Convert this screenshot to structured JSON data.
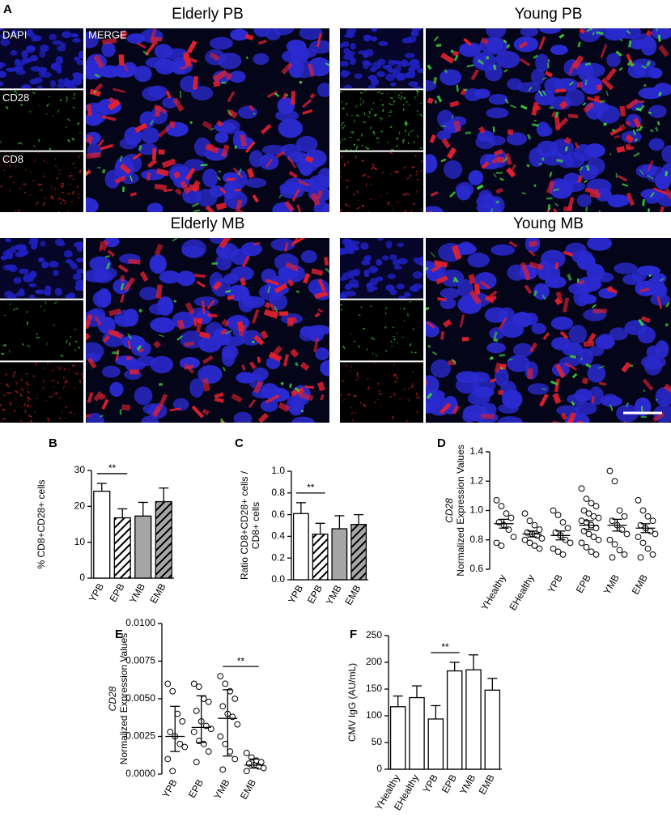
{
  "panel_a": {
    "panel": "A",
    "images": [
      {
        "title": "Elderly PB",
        "labels": {
          "dapi": "DAPI",
          "cd28": "CD28",
          "cd8": "CD8",
          "merge": "MERGE"
        }
      },
      {
        "title": "Young PB"
      },
      {
        "title": "Elderly MB"
      },
      {
        "title": "Young MB"
      }
    ]
  },
  "chart_data": [
    {
      "panel": "B",
      "type": "bar",
      "ylabel": [
        "% CD8+CD28+ cells"
      ],
      "categories": [
        "YPB",
        "EPB",
        "YMB",
        "EMB"
      ],
      "values": [
        24.2,
        16.8,
        17.3,
        21.3
      ],
      "errors": [
        2.2,
        2.5,
        3.8,
        3.8
      ],
      "colors": [
        "#ffffff",
        "#ffffff",
        "#a6a6a6",
        "#a6a6a6"
      ],
      "hatched": [
        false,
        true,
        false,
        true
      ],
      "ylim": [
        0,
        30
      ],
      "yticks": [
        0,
        10,
        20,
        30
      ],
      "annotation": {
        "label": "**",
        "between": [
          "YPB",
          "EPB"
        ]
      }
    },
    {
      "panel": "C",
      "type": "bar",
      "ylabel": [
        "Ratio CD8+CD28+ cells /",
        "CD8+ cells"
      ],
      "categories": [
        "YPB",
        "EPB",
        "YMB",
        "EMB"
      ],
      "values": [
        0.61,
        0.42,
        0.47,
        0.51
      ],
      "errors": [
        0.1,
        0.1,
        0.12,
        0.09
      ],
      "colors": [
        "#ffffff",
        "#ffffff",
        "#a6a6a6",
        "#a6a6a6"
      ],
      "hatched": [
        false,
        true,
        false,
        true
      ],
      "ylim": [
        0,
        1
      ],
      "yticks": [
        {
          "value": 0,
          "label": "0.0"
        },
        0.2,
        0.4,
        0.6,
        0.8,
        {
          "value": 1,
          "label": "1.0"
        }
      ],
      "annotation": {
        "label": "**",
        "between": [
          "YPB",
          "EPB"
        ]
      }
    },
    {
      "panel": "D",
      "type": "dot",
      "ylabel": [
        "CD28",
        "Normalized Expression Values"
      ],
      "ylabel_italic": [
        true,
        false
      ],
      "categories": [
        "YHealthy",
        "EHealthy",
        "YPB",
        "EPB",
        "YMB",
        "EMB"
      ],
      "points": [
        [
          1.07,
          1.03,
          0.98,
          0.95,
          0.92,
          0.9,
          0.87,
          0.82,
          0.78,
          0.76
        ],
        [
          0.98,
          0.93,
          0.9,
          0.87,
          0.85,
          0.84,
          0.83,
          0.81,
          0.8,
          0.78,
          0.76,
          0.74
        ],
        [
          1.0,
          0.97,
          0.92,
          0.88,
          0.85,
          0.83,
          0.8,
          0.78,
          0.74,
          0.72,
          0.7
        ],
        [
          1.15,
          1.08,
          1.05,
          1.03,
          1.0,
          0.98,
          0.96,
          0.95,
          0.93,
          0.92,
          0.9,
          0.88,
          0.86,
          0.84,
          0.82,
          0.8,
          0.78,
          0.75,
          0.72,
          0.7
        ],
        [
          1.27,
          1.2,
          1.0,
          0.96,
          0.93,
          0.9,
          0.87,
          0.84,
          0.8,
          0.77,
          0.73,
          0.7,
          0.68
        ],
        [
          1.07,
          1.0,
          0.96,
          0.93,
          0.9,
          0.88,
          0.86,
          0.84,
          0.82,
          0.78,
          0.74,
          0.7,
          0.68
        ]
      ],
      "values": [
        0.91,
        0.84,
        0.83,
        0.9,
        0.9,
        0.88
      ],
      "errors": [
        0.03,
        0.02,
        0.03,
        0.03,
        0.04,
        0.03
      ],
      "ylim": [
        0.6,
        1.4
      ],
      "yticks": [
        0.6,
        0.8,
        {
          "value": 1,
          "label": "1.0"
        },
        1.2,
        1.4
      ]
    },
    {
      "panel": "E",
      "type": "dot",
      "ylabel": [
        "CD28",
        "Normalized Expression Values"
      ],
      "ylabel_italic": [
        true,
        false
      ],
      "categories": [
        "YPB",
        "EPB",
        "YMB",
        "EMB"
      ],
      "points": [
        [
          0.006,
          0.0055,
          0.004,
          0.0035,
          0.0028,
          0.0025,
          0.002,
          0.0018,
          0.001,
          0.0002
        ],
        [
          0.006,
          0.0058,
          0.005,
          0.0048,
          0.0042,
          0.0035,
          0.0032,
          0.003,
          0.0028,
          0.0022,
          0.002,
          0.0015,
          0.0008
        ],
        [
          0.0065,
          0.006,
          0.0055,
          0.005,
          0.0045,
          0.004,
          0.0038,
          0.0033,
          0.0025,
          0.002,
          0.0015,
          0.001,
          0.0003
        ],
        [
          0.0014,
          0.0011,
          0.0009,
          0.0008,
          0.0007,
          0.0006,
          0.0005,
          0.0004,
          0.0002
        ]
      ],
      "values": [
        0.0025,
        0.0031,
        0.0037,
        0.0006
      ],
      "lower": [
        0.0015,
        0.0021,
        0.0012,
        0.0004
      ],
      "upper": [
        0.0045,
        0.0052,
        0.0056,
        0.001
      ],
      "ylim": [
        0,
        0.01
      ],
      "yticks": [
        {
          "value": 0,
          "label": "0.0000"
        },
        {
          "value": 0.0025,
          "label": "0.0025"
        },
        {
          "value": 0.005,
          "label": "0.0050"
        },
        {
          "value": 0.0075,
          "label": "0.0075"
        },
        {
          "value": 0.01,
          "label": "0.0100"
        }
      ],
      "annotation": {
        "label": "**",
        "between": [
          "YMB",
          "EMB"
        ]
      }
    },
    {
      "panel": "F",
      "type": "bar",
      "ylabel": [
        "CMV IgG (AU/mL)"
      ],
      "categories": [
        "YHealthy",
        "EHealthy",
        "YPB",
        "EPB",
        "YMB",
        "EMB"
      ],
      "values": [
        117,
        134,
        94,
        184,
        186,
        148
      ],
      "errors": [
        20,
        22,
        25,
        16,
        28,
        22
      ],
      "colors": [
        "#ffffff",
        "#ffffff",
        "#ffffff",
        "#ffffff",
        "#ffffff",
        "#ffffff"
      ],
      "hatched": [
        false,
        false,
        false,
        false,
        false,
        false
      ],
      "ylim": [
        0,
        250
      ],
      "yticks": [
        0,
        50,
        100,
        150,
        200,
        250
      ],
      "annotation": {
        "label": "**",
        "between": [
          "YPB",
          "EPB"
        ]
      }
    }
  ]
}
